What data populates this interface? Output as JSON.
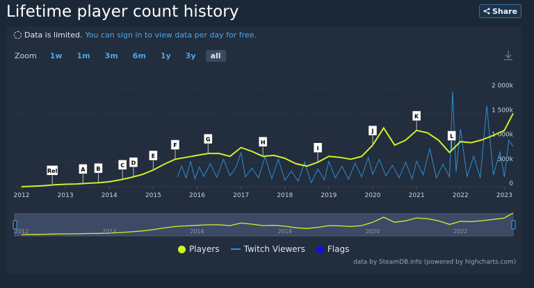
{
  "page": {
    "title": "Lifetime player count history",
    "share_label": "Share"
  },
  "notice": {
    "text": "Data is limited.",
    "link": "You can sign in to view data per day for free."
  },
  "zoom": {
    "label": "Zoom",
    "options": [
      "1w",
      "1m",
      "3m",
      "6m",
      "1y",
      "3y",
      "all"
    ],
    "selected": "all"
  },
  "legend": [
    {
      "name": "Players",
      "color": "#d4f02a",
      "marker": "dot"
    },
    {
      "name": "Twitch Viewers",
      "color": "#2d8fd5",
      "marker": "line"
    },
    {
      "name": "Flags",
      "color": "#1010e0",
      "marker": "dot"
    }
  ],
  "credits": "data by SteamDB.info (powered by highcharts.com)",
  "chart_data": {
    "type": "line",
    "title": "Lifetime player count history",
    "x_axis": {
      "ticks": [
        "2012",
        "2013",
        "2014",
        "2015",
        "2016",
        "2017",
        "2018",
        "2019",
        "2020",
        "2021",
        "2022",
        "2023"
      ],
      "range": [
        2012.0,
        2023.2
      ]
    },
    "y_axis": {
      "ticks": [
        "0",
        "500k",
        "1 000k",
        "1 500k",
        "2 000k"
      ],
      "range": [
        0,
        2000000
      ],
      "position": "right"
    },
    "navigator_ticks": [
      "2012",
      "2014",
      "2016",
      "2018",
      "2020",
      "2022"
    ],
    "grid": true,
    "legend_position": "bottom",
    "series": [
      {
        "name": "Players",
        "color": "#d4f02a",
        "points": [
          [
            2012.0,
            0
          ],
          [
            2012.3,
            10000
          ],
          [
            2012.5,
            20000
          ],
          [
            2012.75,
            40000
          ],
          [
            2013.0,
            50000
          ],
          [
            2013.25,
            55000
          ],
          [
            2013.5,
            70000
          ],
          [
            2013.75,
            80000
          ],
          [
            2014.0,
            100000
          ],
          [
            2014.25,
            140000
          ],
          [
            2014.5,
            190000
          ],
          [
            2014.75,
            250000
          ],
          [
            2015.0,
            340000
          ],
          [
            2015.25,
            460000
          ],
          [
            2015.5,
            560000
          ],
          [
            2015.75,
            600000
          ],
          [
            2016.0,
            640000
          ],
          [
            2016.25,
            680000
          ],
          [
            2016.5,
            680000
          ],
          [
            2016.75,
            620000
          ],
          [
            2017.0,
            800000
          ],
          [
            2017.25,
            720000
          ],
          [
            2017.5,
            620000
          ],
          [
            2017.75,
            640000
          ],
          [
            2018.0,
            580000
          ],
          [
            2018.25,
            470000
          ],
          [
            2018.5,
            420000
          ],
          [
            2018.75,
            500000
          ],
          [
            2019.0,
            620000
          ],
          [
            2019.25,
            600000
          ],
          [
            2019.5,
            560000
          ],
          [
            2019.75,
            620000
          ],
          [
            2020.0,
            850000
          ],
          [
            2020.25,
            1200000
          ],
          [
            2020.5,
            850000
          ],
          [
            2020.75,
            950000
          ],
          [
            2021.0,
            1150000
          ],
          [
            2021.25,
            1100000
          ],
          [
            2021.5,
            950000
          ],
          [
            2021.75,
            700000
          ],
          [
            2022.0,
            920000
          ],
          [
            2022.25,
            900000
          ],
          [
            2022.5,
            960000
          ],
          [
            2022.75,
            1050000
          ],
          [
            2023.0,
            1150000
          ],
          [
            2023.2,
            1500000
          ]
        ]
      },
      {
        "name": "Twitch Viewers",
        "color": "#2d8fd5",
        "points": [
          [
            2015.55,
            200000
          ],
          [
            2015.65,
            420000
          ],
          [
            2015.75,
            180000
          ],
          [
            2015.85,
            520000
          ],
          [
            2015.95,
            160000
          ],
          [
            2016.05,
            400000
          ],
          [
            2016.15,
            210000
          ],
          [
            2016.3,
            470000
          ],
          [
            2016.45,
            190000
          ],
          [
            2016.6,
            560000
          ],
          [
            2016.75,
            220000
          ],
          [
            2016.9,
            420000
          ],
          [
            2017.0,
            700000
          ],
          [
            2017.1,
            200000
          ],
          [
            2017.25,
            380000
          ],
          [
            2017.4,
            180000
          ],
          [
            2017.55,
            620000
          ],
          [
            2017.7,
            160000
          ],
          [
            2017.85,
            560000
          ],
          [
            2018.0,
            130000
          ],
          [
            2018.15,
            320000
          ],
          [
            2018.3,
            110000
          ],
          [
            2018.45,
            500000
          ],
          [
            2018.6,
            80000
          ],
          [
            2018.75,
            360000
          ],
          [
            2018.9,
            140000
          ],
          [
            2019.0,
            520000
          ],
          [
            2019.15,
            180000
          ],
          [
            2019.3,
            420000
          ],
          [
            2019.45,
            150000
          ],
          [
            2019.6,
            480000
          ],
          [
            2019.75,
            200000
          ],
          [
            2019.9,
            600000
          ],
          [
            2020.0,
            250000
          ],
          [
            2020.15,
            560000
          ],
          [
            2020.3,
            220000
          ],
          [
            2020.45,
            440000
          ],
          [
            2020.6,
            180000
          ],
          [
            2020.75,
            500000
          ],
          [
            2020.9,
            160000
          ],
          [
            2021.0,
            520000
          ],
          [
            2021.15,
            240000
          ],
          [
            2021.3,
            780000
          ],
          [
            2021.45,
            180000
          ],
          [
            2021.6,
            460000
          ],
          [
            2021.75,
            200000
          ],
          [
            2021.82,
            1950000
          ],
          [
            2021.9,
            300000
          ],
          [
            2022.0,
            1180000
          ],
          [
            2022.15,
            200000
          ],
          [
            2022.3,
            620000
          ],
          [
            2022.45,
            180000
          ],
          [
            2022.6,
            1650000
          ],
          [
            2022.75,
            240000
          ],
          [
            2022.9,
            720000
          ],
          [
            2023.0,
            200000
          ],
          [
            2023.1,
            950000
          ],
          [
            2023.2,
            820000
          ]
        ]
      }
    ],
    "flags": [
      {
        "label": "Rel",
        "x": 2012.7
      },
      {
        "label": "A",
        "x": 2013.4
      },
      {
        "label": "B",
        "x": 2013.75
      },
      {
        "label": "C",
        "x": 2014.3
      },
      {
        "label": "D",
        "x": 2014.55
      },
      {
        "label": "E",
        "x": 2015.0
      },
      {
        "label": "F",
        "x": 2015.5
      },
      {
        "label": "G",
        "x": 2016.25
      },
      {
        "label": "H",
        "x": 2017.5
      },
      {
        "label": "I",
        "x": 2018.75
      },
      {
        "label": "J",
        "x": 2020.0
      },
      {
        "label": "K",
        "x": 2021.0
      },
      {
        "label": "L",
        "x": 2021.8
      }
    ]
  }
}
